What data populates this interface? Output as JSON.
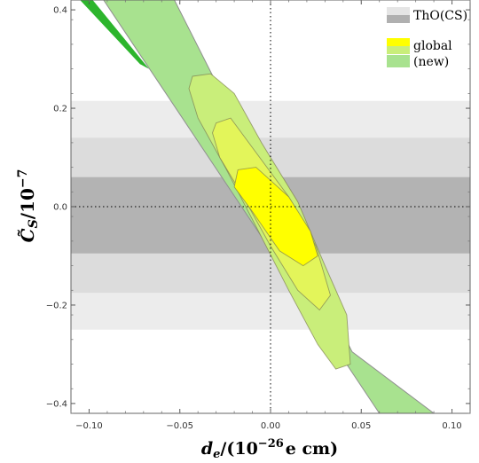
{
  "chart_data": {
    "type": "contour",
    "xlim": [
      -0.11,
      0.11
    ],
    "ylim": [
      -0.42,
      0.42
    ],
    "x_ticks": [
      -0.1,
      -0.05,
      0.0,
      0.05,
      0.1
    ],
    "x_tick_labels": [
      "−0.10",
      "−0.05",
      "0.00",
      "0.05",
      "0.10"
    ],
    "y_ticks": [
      -0.4,
      -0.2,
      0.0,
      0.2,
      0.4
    ],
    "y_tick_labels": [
      "−0.4",
      "−0.2",
      "0.0",
      "0.2",
      "0.4"
    ],
    "xlabel_main": "d",
    "xlabel_sub": "e",
    "xlabel_rest": "/(10",
    "xlabel_sup": "−26",
    "xlabel_tail": "e cm)",
    "ylabel_main": "C̃",
    "ylabel_sub": "S",
    "ylabel_rest": "/10",
    "ylabel_sup": "−7",
    "reference_lines": {
      "x": 0,
      "y": 0,
      "style": "dotted"
    },
    "tho_bands": [
      {
        "y_range": [
          -0.25,
          0.215
        ],
        "color": "#ececec"
      },
      {
        "y_range": [
          -0.175,
          0.14
        ],
        "color": "#dcdcdc"
      },
      {
        "y_range": [
          -0.095,
          0.06
        ],
        "color": "#b3b3b3"
      }
    ],
    "new_band": {
      "color": "#a8e28f",
      "polygon": [
        [
          -0.098,
          0.42
        ],
        [
          -0.053,
          0.42
        ],
        [
          0.045,
          -0.295
        ],
        [
          0.09,
          -0.42
        ],
        [
          0.06,
          -0.42
        ],
        [
          -0.092,
          0.42
        ]
      ]
    },
    "new_band_dark": {
      "color": "#2db52d",
      "polygon": [
        [
          -0.105,
          0.42
        ],
        [
          -0.098,
          0.42
        ],
        [
          -0.067,
          0.28
        ],
        [
          -0.072,
          0.29
        ]
      ]
    },
    "global_regions": [
      {
        "level": 3,
        "color": "#c9ee7a",
        "polygon": [
          [
            -0.043,
            0.265
          ],
          [
            -0.033,
            0.27
          ],
          [
            -0.02,
            0.23
          ],
          [
            -0.005,
            0.13
          ],
          [
            0.015,
            0.01
          ],
          [
            0.03,
            -0.12
          ],
          [
            0.042,
            -0.22
          ],
          [
            0.044,
            -0.32
          ],
          [
            0.036,
            -0.33
          ],
          [
            0.026,
            -0.28
          ],
          [
            0.01,
            -0.17
          ],
          [
            -0.008,
            -0.04
          ],
          [
            -0.025,
            0.08
          ],
          [
            -0.04,
            0.18
          ],
          [
            -0.045,
            0.24
          ]
        ]
      },
      {
        "level": 2,
        "color": "#e3f55a",
        "polygon": [
          [
            -0.03,
            0.17
          ],
          [
            -0.022,
            0.18
          ],
          [
            -0.01,
            0.12
          ],
          [
            0.01,
            0.02
          ],
          [
            0.025,
            -0.08
          ],
          [
            0.033,
            -0.18
          ],
          [
            0.027,
            -0.21
          ],
          [
            0.015,
            -0.17
          ],
          [
            0.0,
            -0.08
          ],
          [
            -0.015,
            0.02
          ],
          [
            -0.028,
            0.1
          ],
          [
            -0.032,
            0.15
          ]
        ]
      },
      {
        "level": 1,
        "color": "#ffff00",
        "polygon": [
          [
            -0.018,
            0.075
          ],
          [
            -0.008,
            0.08
          ],
          [
            0.01,
            0.02
          ],
          [
            0.022,
            -0.05
          ],
          [
            0.026,
            -0.1
          ],
          [
            0.018,
            -0.12
          ],
          [
            0.005,
            -0.09
          ],
          [
            -0.01,
            -0.01
          ],
          [
            -0.02,
            0.04
          ]
        ]
      }
    ],
    "legend": {
      "position": "top-right",
      "entries": [
        {
          "label": "ThO(CS)",
          "colors": [
            "#e5e5e5",
            "#b0b0b0"
          ]
        },
        {
          "label": "global",
          "colors": [
            "#ffff00",
            "#c9ee7a"
          ]
        },
        {
          "label": "(new)",
          "colors": [
            "#a8e28f"
          ]
        }
      ]
    }
  }
}
